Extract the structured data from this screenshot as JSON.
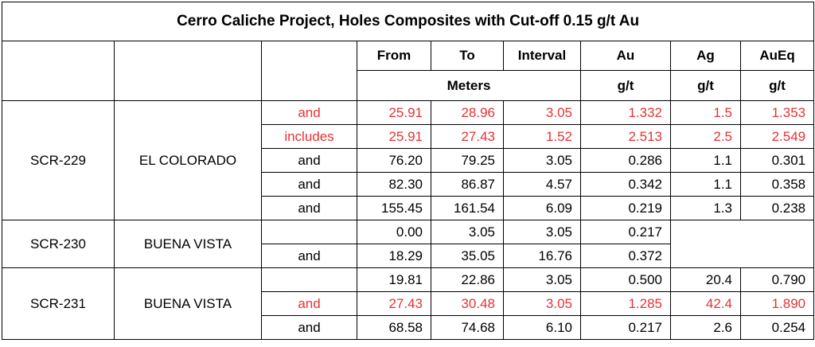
{
  "title": "Cerro Caliche Project, Holes Composites with Cut-off 0.15 g/t Au",
  "headers": {
    "from": "From",
    "to": "To",
    "interval": "Interval",
    "au": "Au",
    "ag": "Ag",
    "aueq": "AuEq",
    "meters": "Meters",
    "unit_au": "g/t",
    "unit_ag": "g/t",
    "unit_aueq": "g/t"
  },
  "groups": [
    {
      "hole": "SCR-229",
      "area": "EL COLORADO"
    },
    {
      "hole": "SCR-230",
      "area": "BUENA VISTA"
    },
    {
      "hole": "SCR-231",
      "area": "BUENA VISTA"
    }
  ],
  "rows": [
    {
      "label": "and",
      "from": "25.91",
      "to": "28.96",
      "interval": "3.05",
      "au": "1.332",
      "ag": "1.5",
      "aueq": "1.353",
      "highlight": true
    },
    {
      "label": "includes",
      "from": "25.91",
      "to": "27.43",
      "interval": "1.52",
      "au": "2.513",
      "ag": "2.5",
      "aueq": "2.549",
      "highlight": true
    },
    {
      "label": "and",
      "from": "76.20",
      "to": "79.25",
      "interval": "3.05",
      "au": "0.286",
      "ag": "1.1",
      "aueq": "0.301",
      "highlight": false
    },
    {
      "label": "and",
      "from": "82.30",
      "to": "86.87",
      "interval": "4.57",
      "au": "0.342",
      "ag": "1.1",
      "aueq": "0.358",
      "highlight": false
    },
    {
      "label": "and",
      "from": "155.45",
      "to": "161.54",
      "interval": "6.09",
      "au": "0.219",
      "ag": "1.3",
      "aueq": "0.238",
      "highlight": false
    },
    {
      "label": "",
      "from": "0.00",
      "to": "3.05",
      "interval": "3.05",
      "au": "0.217",
      "highlight": false
    },
    {
      "label": "and",
      "from": "18.29",
      "to": "35.05",
      "interval": "16.76",
      "au": "0.372",
      "highlight": false
    },
    {
      "label": "",
      "from": "19.81",
      "to": "22.86",
      "interval": "3.05",
      "au": "0.500",
      "ag": "20.4",
      "aueq": "0.790",
      "highlight": false
    },
    {
      "label": "and",
      "from": "27.43",
      "to": "30.48",
      "interval": "3.05",
      "au": "1.285",
      "ag": "42.4",
      "aueq": "1.890",
      "highlight": true
    },
    {
      "label": "and",
      "from": "68.58",
      "to": "74.68",
      "interval": "6.10",
      "au": "0.217",
      "ag": "2.6",
      "aueq": "0.254",
      "highlight": false
    }
  ]
}
